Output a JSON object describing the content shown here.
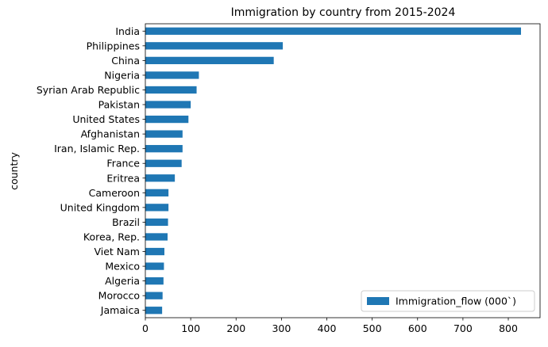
{
  "chart_data": {
    "type": "bar",
    "orientation": "horizontal",
    "title": "Immigration by country from 2015-2024",
    "xlabel": "",
    "ylabel": "country",
    "categories": [
      "India",
      "Philippines",
      "China",
      "Nigeria",
      "Syrian Arab Republic",
      "Pakistan",
      "United States",
      "Afghanistan",
      "Iran, Islamic Rep.",
      "France",
      "Eritrea",
      "Cameroon",
      "United Kingdom",
      "Brazil",
      "Korea, Rep.",
      "Viet Nam",
      "Mexico",
      "Algeria",
      "Morocco",
      "Jamaica"
    ],
    "series": [
      {
        "name": "Immigration_flow (000`)",
        "color": "#1f77b4",
        "values": [
          828,
          303,
          283,
          118,
          113,
          100,
          95,
          82,
          82,
          80,
          65,
          51,
          51,
          50,
          49,
          42,
          41,
          40,
          38,
          37
        ]
      }
    ],
    "xlim": [
      0,
      870
    ],
    "xticks": [
      0,
      100,
      200,
      300,
      400,
      500,
      600,
      700,
      800
    ],
    "grid": false,
    "legend_position": "bottom-right"
  }
}
